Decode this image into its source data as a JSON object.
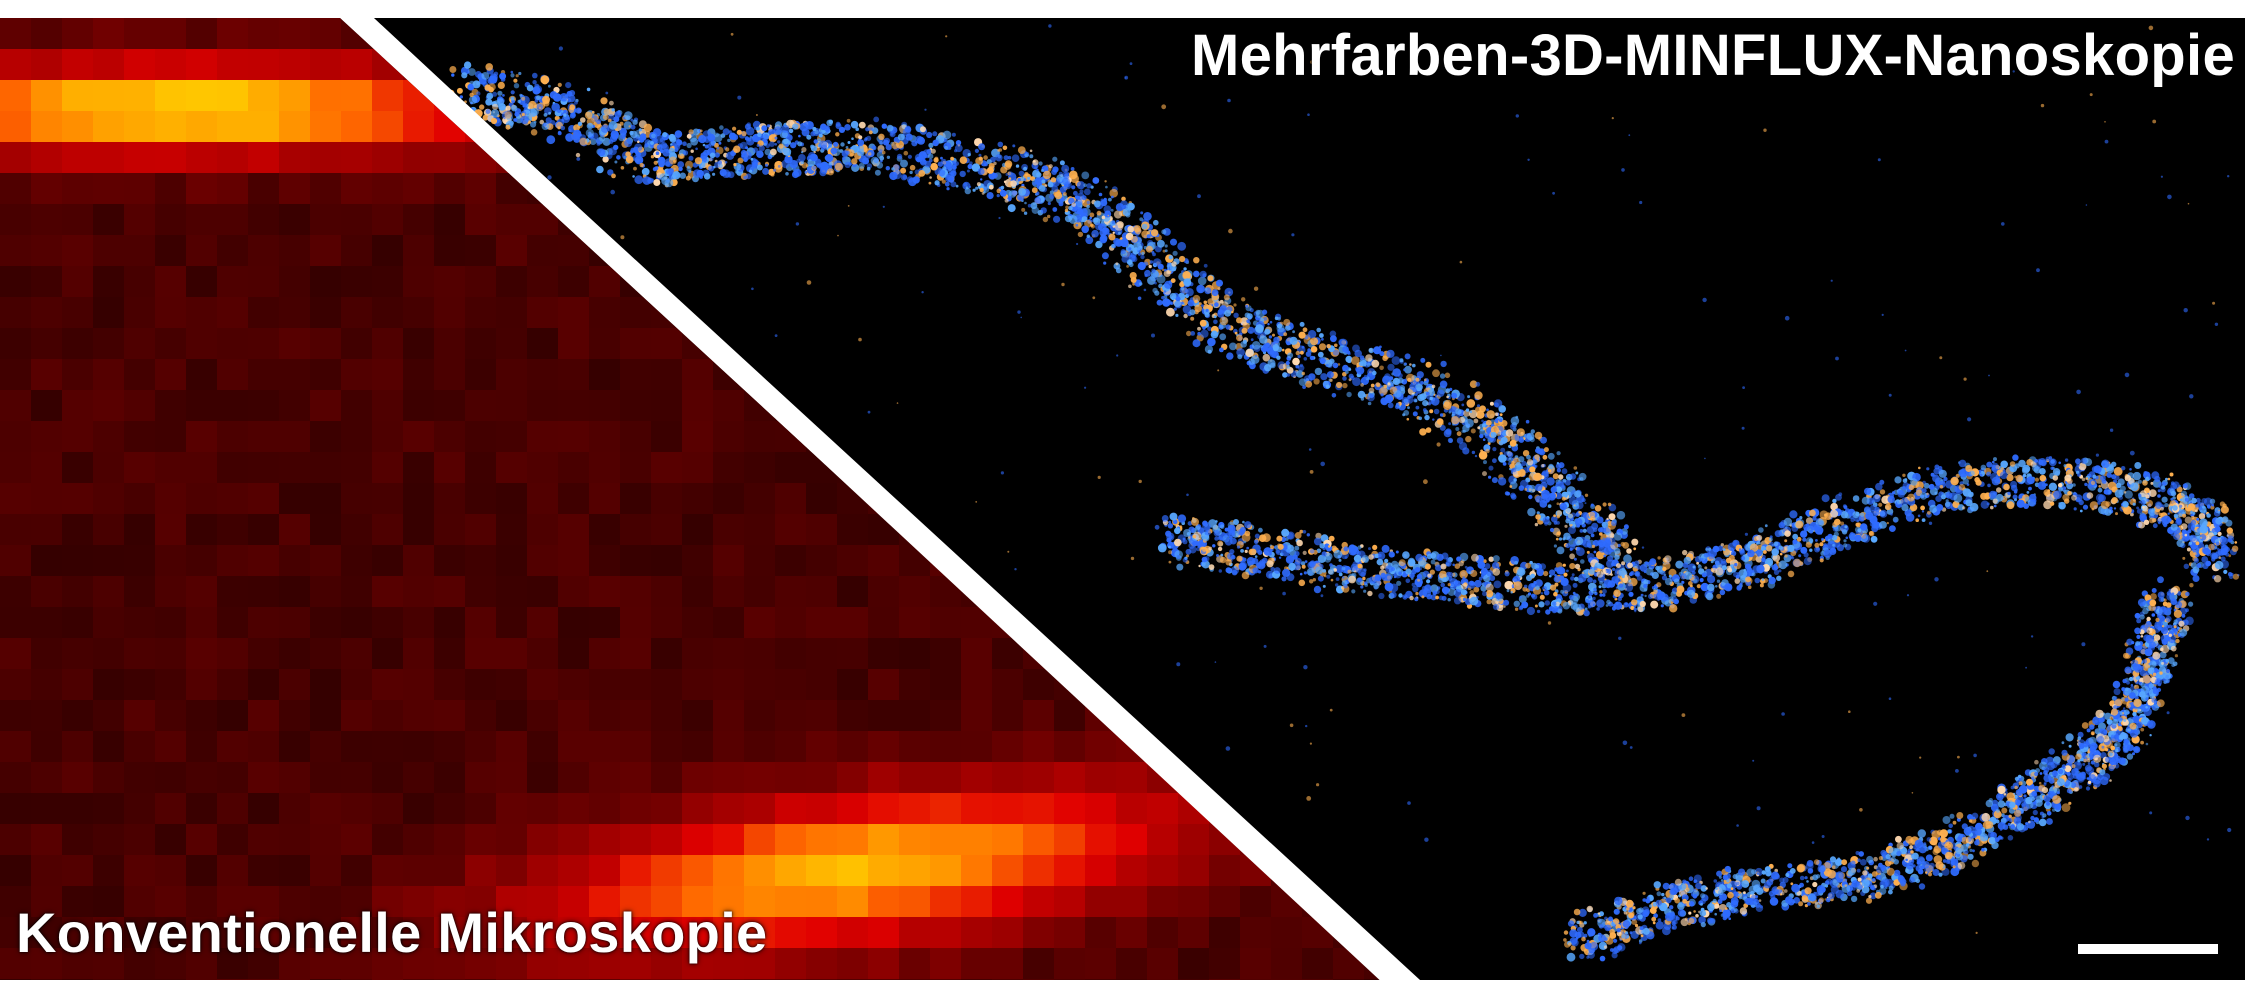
{
  "labels": {
    "super_resolution": "Mehrfarben-3D-MINFLUX-Nanoskopie",
    "conventional": "Konventionelle Mikroskopie"
  },
  "panels": [
    {
      "id": "conventional",
      "description_role": "diffraction-limited widefield image, hot colormap, coarse pixels",
      "colormap": [
        "#1a0000",
        "#8b0000",
        "#e00000",
        "#ff6a00",
        "#ffd400"
      ]
    },
    {
      "id": "minflux",
      "description_role": "multicolor localization map",
      "channel_colors": [
        "#2f6bff",
        "#58a8ff",
        "#ffb050",
        "#ffd9b0"
      ]
    }
  ],
  "scale_bar": {
    "color": "#ffffff"
  }
}
